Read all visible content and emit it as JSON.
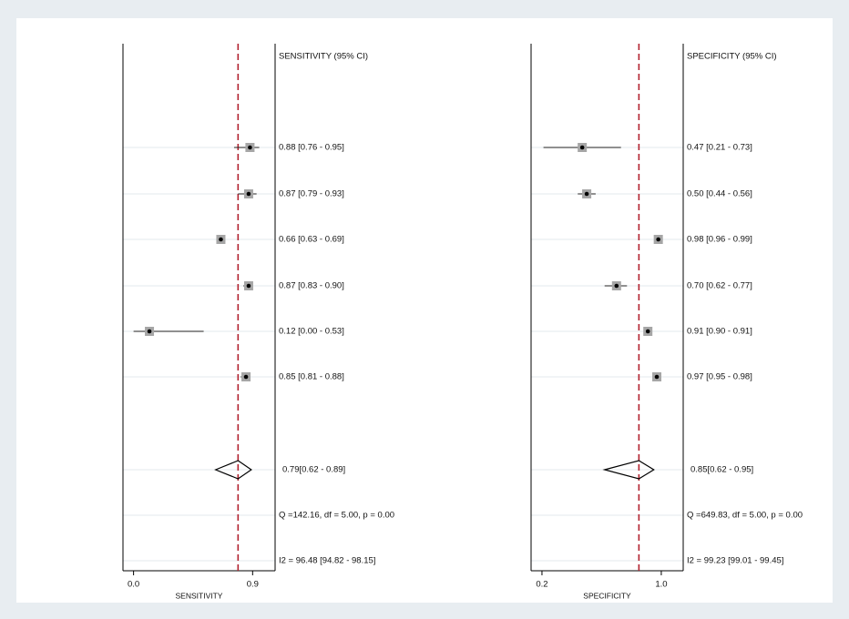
{
  "chart_data": [
    {
      "type": "forest",
      "title": "SENSITIVITY (95% CI)",
      "xlabel": "SENSITIVITY",
      "xlim": [
        -0.08,
        1.07
      ],
      "xticks": [
        {
          "value": 0,
          "label": "0.0"
        },
        0.9
      ],
      "marker_color": "#a6a6a6",
      "reference_color": "#b2222f",
      "estimates": [
        0.88,
        0.87,
        0.66,
        0.87,
        0.12,
        0.85
      ],
      "ci_low": [
        0.76,
        0.79,
        0.63,
        0.83,
        0.0,
        0.81
      ],
      "ci_high": [
        0.95,
        0.93,
        0.69,
        0.9,
        0.53,
        0.88
      ],
      "value_labels": [
        "0.88 [0.76 - 0.95]",
        "0.87 [0.79 - 0.93]",
        "0.66 [0.63 - 0.69]",
        "0.87 [0.83 - 0.90]",
        "0.12 [0.00 - 0.53]",
        "0.85 [0.81 - 0.88]"
      ],
      "pooled": {
        "value": 0.79,
        "ci_low": 0.62,
        "ci_high": 0.89,
        "label": "0.79[0.62 - 0.89]"
      },
      "stats": [
        "Q =142.16, df = 5.00, p =  0.00",
        "I2 = 96.48 [94.82 - 98.15]"
      ]
    },
    {
      "type": "forest",
      "title": "SPECIFICITY (95% CI)",
      "xlabel": "SPECIFICITY",
      "xlim": [
        0.127,
        1.147
      ],
      "xticks": [
        0.2,
        {
          "value": 1,
          "label": "1.0"
        }
      ],
      "marker_color": "#a6a6a6",
      "reference_color": "#b2222f",
      "estimates": [
        0.47,
        0.5,
        0.98,
        0.7,
        0.91,
        0.97
      ],
      "ci_low": [
        0.21,
        0.44,
        0.96,
        0.62,
        0.9,
        0.95
      ],
      "ci_high": [
        0.73,
        0.56,
        0.99,
        0.77,
        0.91,
        0.98
      ],
      "value_labels": [
        "0.47 [0.21 - 0.73]",
        "0.50 [0.44 - 0.56]",
        "0.98 [0.96 - 0.99]",
        "0.70 [0.62 - 0.77]",
        "0.91 [0.90 - 0.91]",
        "0.97 [0.95 - 0.98]"
      ],
      "pooled": {
        "value": 0.85,
        "ci_low": 0.62,
        "ci_high": 0.95,
        "label": "0.85[0.62 - 0.95]"
      },
      "stats": [
        "Q =649.83, df = 5.00, p =  0.00",
        "I2 = 99.23 [99.01 - 99.45]"
      ]
    }
  ]
}
